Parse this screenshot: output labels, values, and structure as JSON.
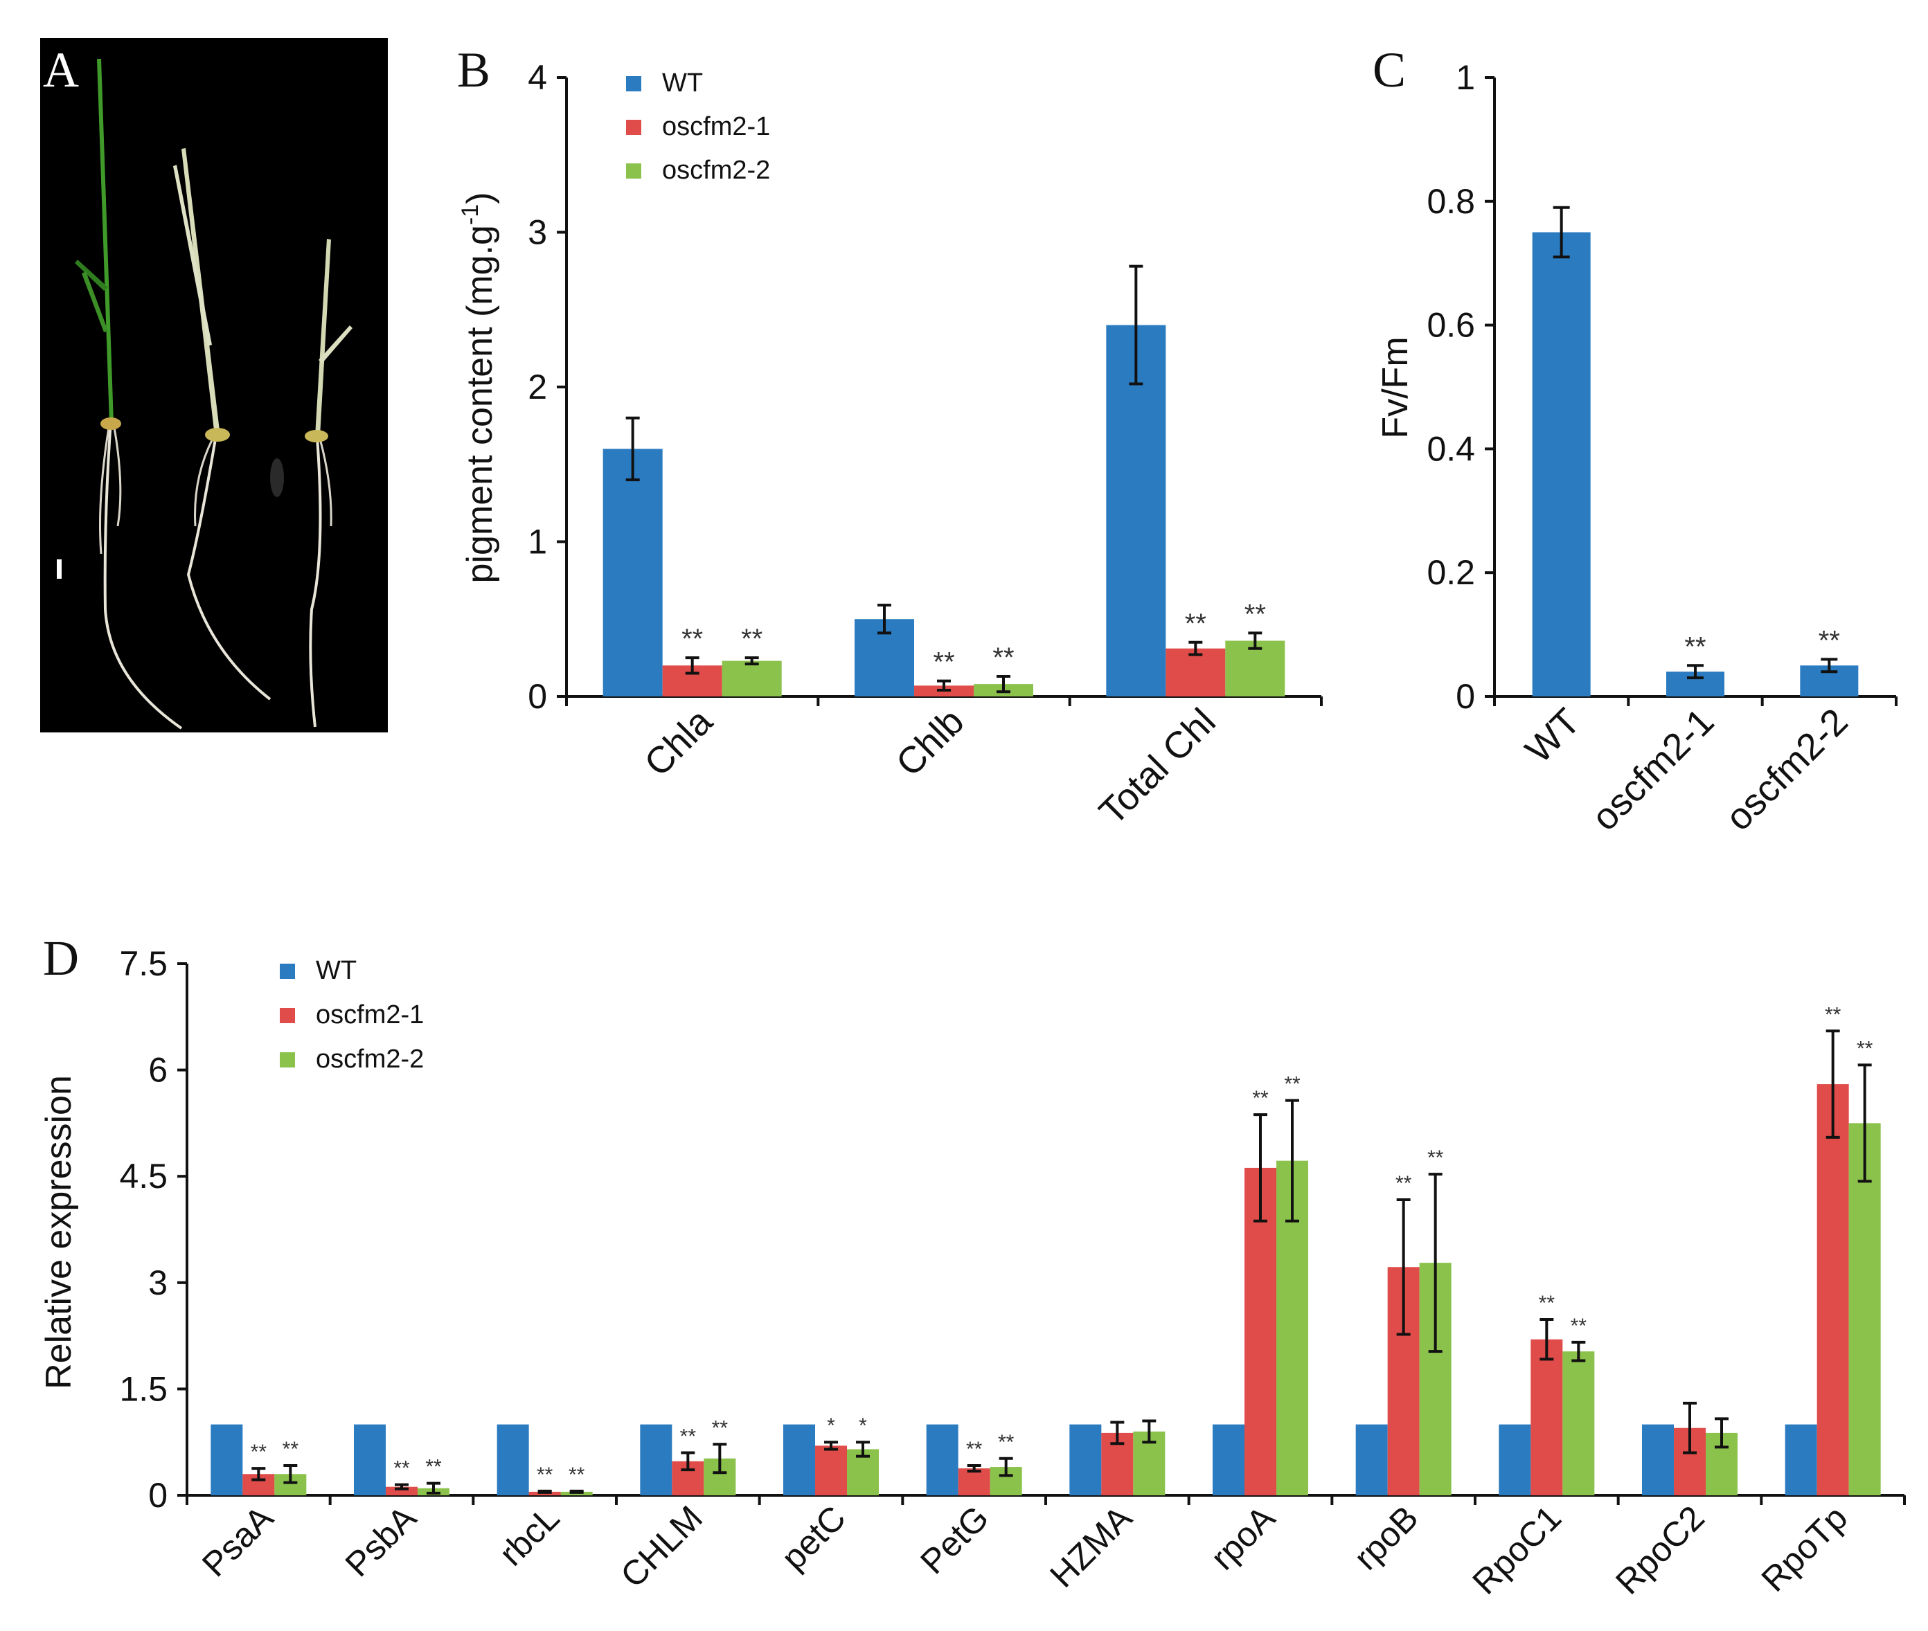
{
  "colors": {
    "WT": "#2b7bc1",
    "oscfm2-1": "#e04c4a",
    "oscfm2-2": "#8bc24c"
  },
  "panelA": {
    "label": "A",
    "image": "photograph of three rice seedlings on black background with scale bar"
  },
  "chart_data": [
    {
      "panel": "B",
      "type": "bar",
      "categories": [
        "Chla",
        "Chlb",
        "Total Chl"
      ],
      "ylabel_main": "pigment content (mg.g",
      "ylabel_sup": "-1",
      "ylabel_close": ")",
      "ylim": [
        0,
        4
      ],
      "yticks": [
        "0",
        "1",
        "2",
        "3",
        "4"
      ],
      "legend": [
        "WT",
        "oscfm2-1",
        "oscfm2-2"
      ],
      "series": [
        {
          "name": "WT",
          "values": [
            1.6,
            0.5,
            2.4
          ],
          "errors": [
            0.2,
            0.09,
            0.38
          ],
          "sig": [
            "",
            "",
            ""
          ]
        },
        {
          "name": "oscfm2-1",
          "values": [
            0.2,
            0.07,
            0.31
          ],
          "errors": [
            0.05,
            0.03,
            0.04
          ],
          "sig": [
            "**",
            "**",
            "**"
          ]
        },
        {
          "name": "oscfm2-2",
          "values": [
            0.23,
            0.08,
            0.36
          ],
          "errors": [
            0.02,
            0.05,
            0.05
          ],
          "sig": [
            "**",
            "**",
            "**"
          ]
        }
      ]
    },
    {
      "panel": "C",
      "type": "bar",
      "categories": [
        "WT",
        "oscfm2-1",
        "oscfm2-2"
      ],
      "ylabel": "Fv/Fm",
      "ylim": [
        0,
        1
      ],
      "yticks": [
        "0",
        "0.2",
        "0.4",
        "0.6",
        "0.8",
        "1"
      ],
      "values": [
        0.75,
        0.04,
        0.05
      ],
      "errors": [
        0.04,
        0.01,
        0.01
      ],
      "sig": [
        "",
        "**",
        "**"
      ]
    },
    {
      "panel": "D",
      "type": "bar",
      "categories": [
        "PsaA",
        "PsbA",
        "rbcL",
        "CHLM",
        "petC",
        "PetG",
        "HZMA",
        "rpoA",
        "rpoB",
        "RpoC1",
        "RpoC2",
        "RpoTp"
      ],
      "ylabel": "Relative expression",
      "ylim": [
        0,
        7.5
      ],
      "yticks": [
        "0",
        "1.5",
        "3",
        "4.5",
        "6",
        "7.5"
      ],
      "legend": [
        "WT",
        "oscfm2-1",
        "oscfm2-2"
      ],
      "series": [
        {
          "name": "WT",
          "values": [
            1,
            1,
            1,
            1,
            1,
            1,
            1,
            1,
            1,
            1,
            1,
            1
          ],
          "errors": [
            0,
            0,
            0,
            0,
            0,
            0,
            0,
            0,
            0,
            0,
            0,
            0
          ],
          "sig": [
            "",
            "",
            "",
            "",
            "",
            "",
            "",
            "",
            "",
            "",
            "",
            ""
          ]
        },
        {
          "name": "oscfm2-1",
          "values": [
            0.3,
            0.12,
            0.05,
            0.48,
            0.7,
            0.38,
            0.88,
            4.62,
            3.22,
            2.2,
            0.95,
            5.8
          ],
          "errors": [
            0.08,
            0.03,
            0.01,
            0.12,
            0.05,
            0.04,
            0.15,
            0.75,
            0.95,
            0.28,
            0.35,
            0.75
          ],
          "sig": [
            "**",
            "**",
            "**",
            "**",
            "*",
            "**",
            "",
            "**",
            "**",
            "**",
            "",
            "**"
          ]
        },
        {
          "name": "oscfm2-2",
          "values": [
            0.3,
            0.1,
            0.05,
            0.52,
            0.65,
            0.4,
            0.9,
            4.72,
            3.28,
            2.03,
            0.88,
            5.25
          ],
          "errors": [
            0.12,
            0.07,
            0.01,
            0.2,
            0.1,
            0.12,
            0.15,
            0.85,
            1.25,
            0.13,
            0.2,
            0.82
          ],
          "sig": [
            "**",
            "**",
            "**",
            "**",
            "*",
            "**",
            "",
            "**",
            "**",
            "**",
            "",
            "**"
          ]
        }
      ]
    }
  ]
}
